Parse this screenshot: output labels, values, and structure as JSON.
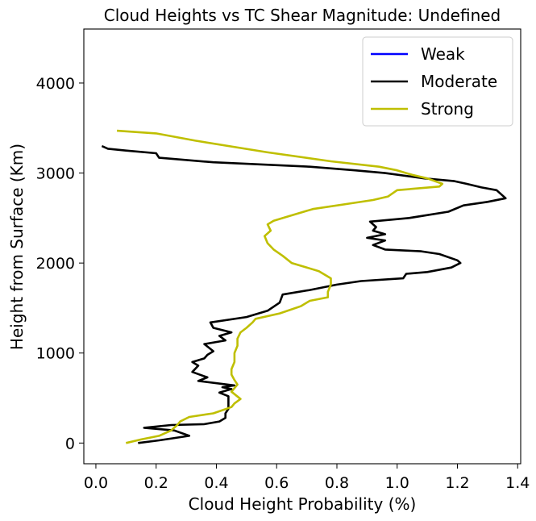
{
  "chart_data": {
    "type": "line",
    "title": "Cloud Heights vs TC Shear Magnitude: Undefined",
    "xlabel": "Cloud Height Probability (%)",
    "ylabel": "Height from Surface (Km)",
    "xlim": [
      -0.04,
      1.41
    ],
    "ylim": [
      -230,
      4600
    ],
    "xticks": [
      0.0,
      0.2,
      0.4,
      0.6,
      0.8,
      1.0,
      1.2,
      1.4
    ],
    "xtick_labels": [
      "0.0",
      "0.2",
      "0.4",
      "0.6",
      "0.8",
      "1.0",
      "1.2",
      "1.4"
    ],
    "yticks": [
      0,
      1000,
      2000,
      3000,
      4000
    ],
    "ytick_labels": [
      "0",
      "1000",
      "2000",
      "3000",
      "4000"
    ],
    "grid": false,
    "legend_position": "top-right",
    "series": [
      {
        "name": "Weak",
        "color": "#0000ff",
        "points": []
      },
      {
        "name": "Moderate",
        "color": "#000000",
        "points": [
          [
            0.14,
            0
          ],
          [
            0.21,
            30
          ],
          [
            0.31,
            80
          ],
          [
            0.26,
            140
          ],
          [
            0.16,
            170
          ],
          [
            0.25,
            200
          ],
          [
            0.36,
            210
          ],
          [
            0.41,
            240
          ],
          [
            0.43,
            280
          ],
          [
            0.43,
            330
          ],
          [
            0.44,
            380
          ],
          [
            0.44,
            460
          ],
          [
            0.44,
            520
          ],
          [
            0.41,
            560
          ],
          [
            0.45,
            600
          ],
          [
            0.42,
            620
          ],
          [
            0.46,
            640
          ],
          [
            0.34,
            690
          ],
          [
            0.37,
            730
          ],
          [
            0.32,
            790
          ],
          [
            0.34,
            860
          ],
          [
            0.32,
            900
          ],
          [
            0.36,
            940
          ],
          [
            0.37,
            980
          ],
          [
            0.39,
            1020
          ],
          [
            0.36,
            1100
          ],
          [
            0.43,
            1140
          ],
          [
            0.41,
            1190
          ],
          [
            0.45,
            1230
          ],
          [
            0.39,
            1280
          ],
          [
            0.38,
            1340
          ],
          [
            0.5,
            1400
          ],
          [
            0.57,
            1470
          ],
          [
            0.61,
            1560
          ],
          [
            0.62,
            1650
          ],
          [
            0.71,
            1700
          ],
          [
            0.8,
            1760
          ],
          [
            0.88,
            1800
          ],
          [
            1.02,
            1830
          ],
          [
            1.03,
            1880
          ],
          [
            1.1,
            1900
          ],
          [
            1.18,
            1950
          ],
          [
            1.21,
            2000
          ],
          [
            1.2,
            2030
          ],
          [
            1.14,
            2100
          ],
          [
            1.08,
            2130
          ],
          [
            0.96,
            2150
          ],
          [
            0.92,
            2200
          ],
          [
            0.96,
            2250
          ],
          [
            0.9,
            2280
          ],
          [
            0.96,
            2320
          ],
          [
            0.92,
            2360
          ],
          [
            0.93,
            2400
          ],
          [
            0.91,
            2460
          ],
          [
            1.04,
            2500
          ],
          [
            1.17,
            2570
          ],
          [
            1.22,
            2640
          ],
          [
            1.3,
            2680
          ],
          [
            1.36,
            2720
          ],
          [
            1.33,
            2810
          ],
          [
            1.28,
            2840
          ],
          [
            1.23,
            2880
          ],
          [
            1.19,
            2910
          ],
          [
            1.09,
            2940
          ],
          [
            0.96,
            3000
          ],
          [
            0.86,
            3030
          ],
          [
            0.71,
            3070
          ],
          [
            0.39,
            3120
          ],
          [
            0.21,
            3170
          ],
          [
            0.2,
            3220
          ],
          [
            0.1,
            3250
          ],
          [
            0.04,
            3270
          ],
          [
            0.02,
            3300
          ]
        ]
      },
      {
        "name": "Strong",
        "color": "#bfbf00",
        "points": [
          [
            0.1,
            0
          ],
          [
            0.15,
            40
          ],
          [
            0.21,
            80
          ],
          [
            0.25,
            140
          ],
          [
            0.27,
            200
          ],
          [
            0.28,
            240
          ],
          [
            0.31,
            290
          ],
          [
            0.39,
            330
          ],
          [
            0.45,
            400
          ],
          [
            0.46,
            440
          ],
          [
            0.48,
            490
          ],
          [
            0.45,
            570
          ],
          [
            0.47,
            650
          ],
          [
            0.46,
            700
          ],
          [
            0.45,
            760
          ],
          [
            0.45,
            820
          ],
          [
            0.46,
            900
          ],
          [
            0.46,
            1000
          ],
          [
            0.47,
            1080
          ],
          [
            0.47,
            1160
          ],
          [
            0.48,
            1230
          ],
          [
            0.5,
            1280
          ],
          [
            0.52,
            1340
          ],
          [
            0.53,
            1380
          ],
          [
            0.61,
            1440
          ],
          [
            0.68,
            1520
          ],
          [
            0.71,
            1580
          ],
          [
            0.77,
            1620
          ],
          [
            0.77,
            1680
          ],
          [
            0.78,
            1760
          ],
          [
            0.78,
            1830
          ],
          [
            0.74,
            1910
          ],
          [
            0.65,
            2000
          ],
          [
            0.62,
            2080
          ],
          [
            0.59,
            2150
          ],
          [
            0.57,
            2220
          ],
          [
            0.56,
            2300
          ],
          [
            0.58,
            2360
          ],
          [
            0.57,
            2430
          ],
          [
            0.59,
            2470
          ],
          [
            0.63,
            2510
          ],
          [
            0.72,
            2600
          ],
          [
            0.84,
            2660
          ],
          [
            0.92,
            2700
          ],
          [
            0.97,
            2740
          ],
          [
            1.0,
            2810
          ],
          [
            1.14,
            2850
          ],
          [
            1.15,
            2880
          ],
          [
            1.1,
            2940
          ],
          [
            1.05,
            2980
          ],
          [
            1.0,
            3030
          ],
          [
            0.94,
            3070
          ],
          [
            0.78,
            3130
          ],
          [
            0.57,
            3230
          ],
          [
            0.33,
            3360
          ],
          [
            0.2,
            3440
          ],
          [
            0.07,
            3470
          ]
        ]
      }
    ]
  }
}
